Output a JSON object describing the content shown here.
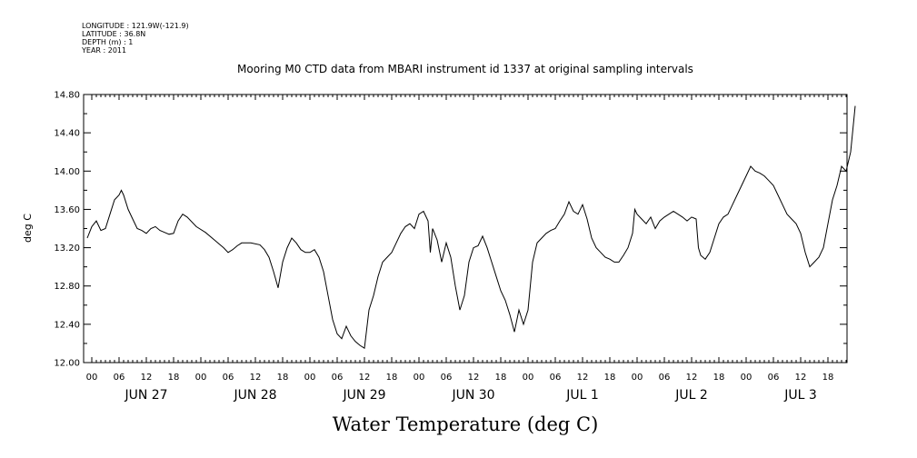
{
  "header": {
    "meta_lines": [
      "LONGITUDE : 121.9W(-121.9)",
      "LATITUDE : 36.8N",
      "DEPTH (m) : 1",
      "YEAR : 2011"
    ]
  },
  "chart_data": {
    "type": "line",
    "title": "Mooring M0 CTD data from MBARI instrument id 1337 at original sampling intervals",
    "xlabel": "Water Temperature (deg C)",
    "ylabel": "deg C",
    "y_range": [
      12.0,
      14.8
    ],
    "y_ticks": [
      "12.00",
      "12.40",
      "12.80",
      "13.20",
      "13.60",
      "14.00",
      "14.40",
      "14.80"
    ],
    "x_range_hours": [
      0,
      168
    ],
    "hour_tick_labels": [
      "00",
      "06",
      "12",
      "18"
    ],
    "day_labels": [
      "JUN 27",
      "JUN 28",
      "JUN 29",
      "JUN 30",
      "JUL 1",
      "JUL 2",
      "JUL 3"
    ],
    "grid": false,
    "series": [
      {
        "color": "#000000",
        "points": [
          [
            -1.0,
            13.3
          ],
          [
            0.0,
            13.42
          ],
          [
            1.0,
            13.48
          ],
          [
            2.0,
            13.38
          ],
          [
            3.0,
            13.4
          ],
          [
            4.0,
            13.55
          ],
          [
            5.0,
            13.7
          ],
          [
            6.0,
            13.75
          ],
          [
            6.5,
            13.8
          ],
          [
            7.0,
            13.75
          ],
          [
            8.0,
            13.6
          ],
          [
            9.0,
            13.5
          ],
          [
            10.0,
            13.4
          ],
          [
            11.0,
            13.38
          ],
          [
            12.0,
            13.35
          ],
          [
            13.0,
            13.4
          ],
          [
            14.0,
            13.42
          ],
          [
            15.0,
            13.38
          ],
          [
            16.0,
            13.36
          ],
          [
            17.0,
            13.34
          ],
          [
            18.0,
            13.35
          ],
          [
            19.0,
            13.48
          ],
          [
            20.0,
            13.55
          ],
          [
            21.0,
            13.52
          ],
          [
            23.0,
            13.42
          ],
          [
            25.0,
            13.36
          ],
          [
            27.0,
            13.28
          ],
          [
            29.0,
            13.2
          ],
          [
            30.0,
            13.15
          ],
          [
            31.0,
            13.18
          ],
          [
            32.0,
            13.22
          ],
          [
            33.0,
            13.25
          ],
          [
            35.0,
            13.25
          ],
          [
            37.0,
            13.23
          ],
          [
            38.0,
            13.18
          ],
          [
            39.0,
            13.1
          ],
          [
            40.0,
            12.95
          ],
          [
            41.0,
            12.78
          ],
          [
            42.0,
            13.05
          ],
          [
            43.0,
            13.2
          ],
          [
            44.0,
            13.3
          ],
          [
            45.0,
            13.25
          ],
          [
            46.0,
            13.18
          ],
          [
            47.0,
            13.15
          ],
          [
            48.0,
            13.15
          ],
          [
            49.0,
            13.18
          ],
          [
            50.0,
            13.1
          ],
          [
            51.0,
            12.95
          ],
          [
            52.0,
            12.7
          ],
          [
            53.0,
            12.45
          ],
          [
            54.0,
            12.3
          ],
          [
            55.0,
            12.25
          ],
          [
            56.0,
            12.38
          ],
          [
            57.0,
            12.28
          ],
          [
            58.0,
            12.22
          ],
          [
            59.0,
            12.18
          ],
          [
            60.0,
            12.15
          ],
          [
            61.0,
            12.55
          ],
          [
            62.0,
            12.7
          ],
          [
            63.0,
            12.9
          ],
          [
            64.0,
            13.05
          ],
          [
            65.0,
            13.1
          ],
          [
            66.0,
            13.15
          ],
          [
            67.0,
            13.25
          ],
          [
            68.0,
            13.35
          ],
          [
            69.0,
            13.42
          ],
          [
            70.0,
            13.45
          ],
          [
            71.0,
            13.4
          ],
          [
            72.0,
            13.55
          ],
          [
            73.0,
            13.58
          ],
          [
            74.0,
            13.48
          ],
          [
            74.5,
            13.15
          ],
          [
            75.0,
            13.4
          ],
          [
            76.0,
            13.28
          ],
          [
            77.0,
            13.05
          ],
          [
            78.0,
            13.25
          ],
          [
            79.0,
            13.1
          ],
          [
            80.0,
            12.8
          ],
          [
            81.0,
            12.55
          ],
          [
            82.0,
            12.7
          ],
          [
            83.0,
            13.05
          ],
          [
            84.0,
            13.2
          ],
          [
            85.0,
            13.22
          ],
          [
            86.0,
            13.32
          ],
          [
            87.0,
            13.2
          ],
          [
            88.0,
            13.05
          ],
          [
            89.0,
            12.9
          ],
          [
            90.0,
            12.75
          ],
          [
            91.0,
            12.65
          ],
          [
            92.0,
            12.5
          ],
          [
            93.0,
            12.32
          ],
          [
            94.0,
            12.55
          ],
          [
            95.0,
            12.4
          ],
          [
            96.0,
            12.55
          ],
          [
            97.0,
            13.05
          ],
          [
            98.0,
            13.25
          ],
          [
            99.0,
            13.3
          ],
          [
            100.0,
            13.35
          ],
          [
            101.0,
            13.38
          ],
          [
            102.0,
            13.4
          ],
          [
            103.0,
            13.48
          ],
          [
            104.0,
            13.55
          ],
          [
            105.0,
            13.68
          ],
          [
            106.0,
            13.58
          ],
          [
            107.0,
            13.55
          ],
          [
            108.0,
            13.65
          ],
          [
            109.0,
            13.5
          ],
          [
            110.0,
            13.3
          ],
          [
            111.0,
            13.2
          ],
          [
            112.0,
            13.15
          ],
          [
            113.0,
            13.1
          ],
          [
            114.0,
            13.08
          ],
          [
            115.0,
            13.05
          ],
          [
            116.0,
            13.05
          ],
          [
            117.0,
            13.12
          ],
          [
            118.0,
            13.2
          ],
          [
            119.0,
            13.35
          ],
          [
            119.5,
            13.6
          ],
          [
            120.0,
            13.55
          ],
          [
            121.0,
            13.5
          ],
          [
            122.0,
            13.45
          ],
          [
            123.0,
            13.52
          ],
          [
            124.0,
            13.4
          ],
          [
            125.0,
            13.48
          ],
          [
            126.0,
            13.52
          ],
          [
            127.0,
            13.55
          ],
          [
            128.0,
            13.58
          ],
          [
            129.0,
            13.55
          ],
          [
            130.0,
            13.52
          ],
          [
            131.0,
            13.48
          ],
          [
            132.0,
            13.52
          ],
          [
            133.0,
            13.5
          ],
          [
            133.5,
            13.2
          ],
          [
            134.0,
            13.12
          ],
          [
            135.0,
            13.08
          ],
          [
            136.0,
            13.15
          ],
          [
            137.0,
            13.3
          ],
          [
            138.0,
            13.45
          ],
          [
            139.0,
            13.52
          ],
          [
            140.0,
            13.55
          ],
          [
            141.0,
            13.65
          ],
          [
            142.0,
            13.75
          ],
          [
            143.0,
            13.85
          ],
          [
            144.0,
            13.95
          ],
          [
            145.0,
            14.05
          ],
          [
            146.0,
            14.0
          ],
          [
            147.0,
            13.98
          ],
          [
            148.0,
            13.95
          ],
          [
            149.0,
            13.9
          ],
          [
            150.0,
            13.85
          ],
          [
            151.0,
            13.75
          ],
          [
            152.0,
            13.65
          ],
          [
            153.0,
            13.55
          ],
          [
            154.0,
            13.5
          ],
          [
            155.0,
            13.45
          ],
          [
            156.0,
            13.35
          ],
          [
            157.0,
            13.15
          ],
          [
            158.0,
            13.0
          ],
          [
            159.0,
            13.05
          ],
          [
            160.0,
            13.1
          ],
          [
            161.0,
            13.2
          ],
          [
            162.0,
            13.45
          ],
          [
            163.0,
            13.7
          ],
          [
            164.0,
            13.85
          ],
          [
            165.0,
            14.05
          ],
          [
            166.0,
            14.0
          ],
          [
            167.0,
            14.2
          ],
          [
            168.0,
            14.68
          ]
        ]
      }
    ]
  }
}
